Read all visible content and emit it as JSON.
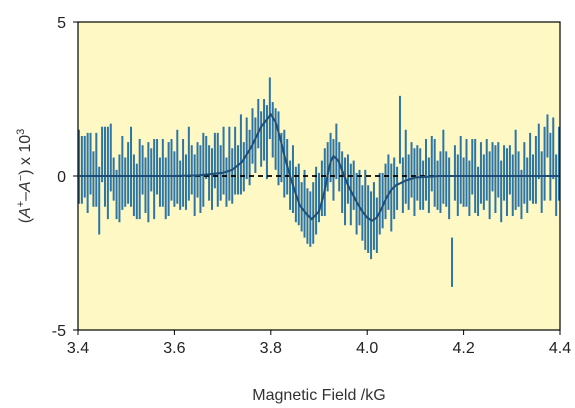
{
  "chart_data": {
    "type": "scatter",
    "title": "",
    "xlabel": "Magnetic Field /kG",
    "ylabel_parts": [
      "(",
      "A",
      "+",
      "–",
      "A",
      "−",
      ") x 10",
      "3"
    ],
    "xlim": [
      3.4,
      4.4
    ],
    "ylim": [
      -5,
      5
    ],
    "x_tick_labels": [
      "3.4",
      "3.6",
      "3.8",
      "4.0",
      "4.2",
      "4.4"
    ],
    "y_tick_labels": [
      "5",
      "0",
      "-5"
    ],
    "background_color": "#fdf8c4",
    "series_color": "#2e75a6",
    "fit_color": "#1f4e79",
    "zero_line_style": "dashed",
    "series": [
      {
        "type": "error_bars",
        "points": [
          {
            "x": 3.402,
            "y": 0.3,
            "err": 1.2
          },
          {
            "x": 3.408,
            "y": 0.2,
            "err": 1.1
          },
          {
            "x": 3.414,
            "y": 0.3,
            "err": 1.0
          },
          {
            "x": 3.42,
            "y": 0.1,
            "err": 1.3
          },
          {
            "x": 3.426,
            "y": 0.4,
            "err": 1.0
          },
          {
            "x": 3.432,
            "y": -0.1,
            "err": 0.9
          },
          {
            "x": 3.438,
            "y": 0.2,
            "err": 1.2
          },
          {
            "x": 3.444,
            "y": -0.8,
            "err": 1.1
          },
          {
            "x": 3.45,
            "y": 0.7,
            "err": 0.9
          },
          {
            "x": 3.456,
            "y": 0.3,
            "err": 1.3
          },
          {
            "x": 3.462,
            "y": 0.1,
            "err": 1.5
          },
          {
            "x": 3.468,
            "y": 0.6,
            "err": 1.1
          },
          {
            "x": 3.474,
            "y": -0.1,
            "err": 0.7
          },
          {
            "x": 3.48,
            "y": -0.6,
            "err": 0.8
          },
          {
            "x": 3.486,
            "y": -0.4,
            "err": 1.1
          },
          {
            "x": 3.492,
            "y": 0.1,
            "err": 1.2
          },
          {
            "x": 3.498,
            "y": -0.2,
            "err": 0.8
          },
          {
            "x": 3.504,
            "y": 0.1,
            "err": 1.0
          },
          {
            "x": 3.51,
            "y": 0.3,
            "err": 1.3
          },
          {
            "x": 3.516,
            "y": -0.3,
            "err": 1.0
          },
          {
            "x": 3.522,
            "y": -0.5,
            "err": 0.9
          },
          {
            "x": 3.528,
            "y": -0.1,
            "err": 1.3
          },
          {
            "x": 3.534,
            "y": 0.2,
            "err": 0.8
          },
          {
            "x": 3.54,
            "y": -0.3,
            "err": 0.9
          },
          {
            "x": 3.546,
            "y": -0.2,
            "err": 1.3
          },
          {
            "x": 3.552,
            "y": 0.2,
            "err": 0.7
          },
          {
            "x": 3.558,
            "y": -0.1,
            "err": 1.3
          },
          {
            "x": 3.564,
            "y": 0.3,
            "err": 0.9
          },
          {
            "x": 3.57,
            "y": -0.2,
            "err": 0.8
          },
          {
            "x": 3.576,
            "y": 0.1,
            "err": 1.1
          },
          {
            "x": 3.582,
            "y": -0.4,
            "err": 1.0
          },
          {
            "x": 3.588,
            "y": -0.1,
            "err": 1.2
          },
          {
            "x": 3.594,
            "y": 0.2,
            "err": 1.0
          },
          {
            "x": 3.6,
            "y": -0.1,
            "err": 0.9
          },
          {
            "x": 3.606,
            "y": 0.3,
            "err": 1.2
          },
          {
            "x": 3.612,
            "y": -0.3,
            "err": 0.8
          },
          {
            "x": 3.618,
            "y": 0.1,
            "err": 1.1
          },
          {
            "x": 3.624,
            "y": -0.2,
            "err": 0.9
          },
          {
            "x": 3.63,
            "y": 0.4,
            "err": 1.2
          },
          {
            "x": 3.636,
            "y": 0.2,
            "err": 0.8
          },
          {
            "x": 3.642,
            "y": -0.3,
            "err": 1.0
          },
          {
            "x": 3.648,
            "y": 0.2,
            "err": 0.9
          },
          {
            "x": 3.654,
            "y": -0.1,
            "err": 1.1
          },
          {
            "x": 3.66,
            "y": 0.2,
            "err": 1.2
          },
          {
            "x": 3.666,
            "y": 0.6,
            "err": 0.7
          },
          {
            "x": 3.672,
            "y": 0.1,
            "err": 0.9
          },
          {
            "x": 3.678,
            "y": -0.1,
            "err": 1.0
          },
          {
            "x": 3.684,
            "y": 0.5,
            "err": 0.9
          },
          {
            "x": 3.69,
            "y": 0.2,
            "err": 1.2
          },
          {
            "x": 3.696,
            "y": 0.1,
            "err": 0.9
          },
          {
            "x": 3.702,
            "y": 0.5,
            "err": 1.1
          },
          {
            "x": 3.708,
            "y": -0.2,
            "err": 0.8
          },
          {
            "x": 3.714,
            "y": 0.4,
            "err": 1.2
          },
          {
            "x": 3.72,
            "y": 0.0,
            "err": 0.9
          },
          {
            "x": 3.726,
            "y": 0.5,
            "err": 1.1
          },
          {
            "x": 3.732,
            "y": 0.2,
            "err": 0.8
          },
          {
            "x": 3.738,
            "y": 0.7,
            "err": 1.3
          },
          {
            "x": 3.744,
            "y": 0.3,
            "err": 0.8
          },
          {
            "x": 3.75,
            "y": 0.9,
            "err": 1.0
          },
          {
            "x": 3.756,
            "y": 0.6,
            "err": 0.9
          },
          {
            "x": 3.762,
            "y": 1.3,
            "err": 0.9
          },
          {
            "x": 3.768,
            "y": 1.0,
            "err": 0.9
          },
          {
            "x": 3.774,
            "y": 1.7,
            "err": 0.8
          },
          {
            "x": 3.78,
            "y": 1.2,
            "err": 0.9
          },
          {
            "x": 3.786,
            "y": 1.5,
            "err": 1.0
          },
          {
            "x": 3.792,
            "y": 1.1,
            "err": 1.2
          },
          {
            "x": 3.798,
            "y": 2.2,
            "err": 1.0
          },
          {
            "x": 3.804,
            "y": 1.5,
            "err": 0.9
          },
          {
            "x": 3.81,
            "y": 1.2,
            "err": 1.0
          },
          {
            "x": 3.816,
            "y": 0.9,
            "err": 1.2
          },
          {
            "x": 3.822,
            "y": 0.6,
            "err": 0.8
          },
          {
            "x": 3.828,
            "y": 0.4,
            "err": 1.1
          },
          {
            "x": 3.834,
            "y": 0.3,
            "err": 0.9
          },
          {
            "x": 3.84,
            "y": -0.3,
            "err": 0.8
          },
          {
            "x": 3.846,
            "y": -0.1,
            "err": 1.1
          },
          {
            "x": 3.852,
            "y": -0.6,
            "err": 0.9
          },
          {
            "x": 3.858,
            "y": -0.6,
            "err": 1.0
          },
          {
            "x": 3.864,
            "y": -1.0,
            "err": 0.8
          },
          {
            "x": 3.87,
            "y": -0.9,
            "err": 1.1
          },
          {
            "x": 3.876,
            "y": -1.3,
            "err": 0.9
          },
          {
            "x": 3.882,
            "y": -1.4,
            "err": 0.9
          },
          {
            "x": 3.888,
            "y": -1.2,
            "err": 1.0
          },
          {
            "x": 3.894,
            "y": -0.8,
            "err": 1.1
          },
          {
            "x": 3.9,
            "y": -0.7,
            "err": 0.8
          },
          {
            "x": 3.906,
            "y": -0.4,
            "err": 0.9
          },
          {
            "x": 3.912,
            "y": -0.2,
            "err": 1.1
          },
          {
            "x": 3.918,
            "y": 0.3,
            "err": 0.8
          },
          {
            "x": 3.924,
            "y": 0.6,
            "err": 0.8
          },
          {
            "x": 3.93,
            "y": 0.2,
            "err": 1.0
          },
          {
            "x": 3.936,
            "y": 0.8,
            "err": 0.9
          },
          {
            "x": 3.942,
            "y": 0.3,
            "err": 0.8
          },
          {
            "x": 3.948,
            "y": -0.2,
            "err": 1.0
          },
          {
            "x": 3.954,
            "y": -0.5,
            "err": 1.1
          },
          {
            "x": 3.96,
            "y": -0.1,
            "err": 0.8
          },
          {
            "x": 3.966,
            "y": -0.6,
            "err": 1.0
          },
          {
            "x": 3.972,
            "y": -0.3,
            "err": 0.8
          },
          {
            "x": 3.978,
            "y": -0.9,
            "err": 1.0
          },
          {
            "x": 3.984,
            "y": -0.7,
            "err": 0.9
          },
          {
            "x": 3.99,
            "y": -1.2,
            "err": 0.9
          },
          {
            "x": 3.996,
            "y": -1.1,
            "err": 1.3
          },
          {
            "x": 4.002,
            "y": -1.4,
            "err": 1.1
          },
          {
            "x": 4.008,
            "y": -1.6,
            "err": 1.1
          },
          {
            "x": 4.014,
            "y": -1.3,
            "err": 1.1
          },
          {
            "x": 4.02,
            "y": -1.6,
            "err": 0.9
          },
          {
            "x": 4.026,
            "y": -0.9,
            "err": 1.0
          },
          {
            "x": 4.032,
            "y": -0.8,
            "err": 0.9
          },
          {
            "x": 4.038,
            "y": -0.5,
            "err": 0.9
          },
          {
            "x": 4.044,
            "y": -0.2,
            "err": 0.9
          },
          {
            "x": 4.05,
            "y": -0.7,
            "err": 1.1
          },
          {
            "x": 4.056,
            "y": -0.4,
            "err": 1.0
          },
          {
            "x": 4.062,
            "y": -0.4,
            "err": 0.7
          },
          {
            "x": 4.068,
            "y": 1.5,
            "err": 1.1
          },
          {
            "x": 4.074,
            "y": -0.3,
            "err": 0.9
          },
          {
            "x": 4.08,
            "y": 0.3,
            "err": 1.2
          },
          {
            "x": 4.086,
            "y": -0.2,
            "err": 0.9
          },
          {
            "x": 4.092,
            "y": 0.2,
            "err": 0.9
          },
          {
            "x": 4.098,
            "y": -0.2,
            "err": 1.1
          },
          {
            "x": 4.104,
            "y": 0.1,
            "err": 0.9
          },
          {
            "x": 4.11,
            "y": -0.1,
            "err": 1.0
          },
          {
            "x": 4.116,
            "y": -0.3,
            "err": 0.8
          },
          {
            "x": 4.122,
            "y": 0.2,
            "err": 1.0
          },
          {
            "x": 4.128,
            "y": -0.3,
            "err": 0.9
          },
          {
            "x": 4.134,
            "y": 0.4,
            "err": 0.9
          },
          {
            "x": 4.14,
            "y": 0.1,
            "err": 1.1
          },
          {
            "x": 4.146,
            "y": -0.3,
            "err": 0.8
          },
          {
            "x": 4.152,
            "y": -0.2,
            "err": 1.0
          },
          {
            "x": 4.158,
            "y": 0.3,
            "err": 1.2
          },
          {
            "x": 4.164,
            "y": -0.1,
            "err": 0.9
          },
          {
            "x": 4.17,
            "y": -0.4,
            "err": 1.0
          },
          {
            "x": 4.176,
            "y": -2.8,
            "err": 0.8
          },
          {
            "x": 4.182,
            "y": 0.1,
            "err": 0.9
          },
          {
            "x": 4.188,
            "y": -0.3,
            "err": 1.0
          },
          {
            "x": 4.194,
            "y": 0.2,
            "err": 1.1
          },
          {
            "x": 4.2,
            "y": -0.2,
            "err": 0.8
          },
          {
            "x": 4.206,
            "y": 0.1,
            "err": 1.1
          },
          {
            "x": 4.212,
            "y": -0.4,
            "err": 0.9
          },
          {
            "x": 4.218,
            "y": 0.3,
            "err": 0.9
          },
          {
            "x": 4.224,
            "y": 0.0,
            "err": 1.2
          },
          {
            "x": 4.23,
            "y": -0.5,
            "err": 0.8
          },
          {
            "x": 4.236,
            "y": 0.1,
            "err": 1.0
          },
          {
            "x": 4.242,
            "y": -0.2,
            "err": 0.9
          },
          {
            "x": 4.248,
            "y": 0.2,
            "err": 1.0
          },
          {
            "x": 4.254,
            "y": -0.3,
            "err": 1.1
          },
          {
            "x": 4.26,
            "y": 0.3,
            "err": 0.8
          },
          {
            "x": 4.266,
            "y": -0.1,
            "err": 1.1
          },
          {
            "x": 4.272,
            "y": 0.2,
            "err": 0.9
          },
          {
            "x": 4.278,
            "y": -0.5,
            "err": 1.0
          },
          {
            "x": 4.284,
            "y": 0.1,
            "err": 0.9
          },
          {
            "x": 4.29,
            "y": -0.2,
            "err": 1.1
          },
          {
            "x": 4.296,
            "y": 0.2,
            "err": 0.8
          },
          {
            "x": 4.302,
            "y": -0.3,
            "err": 1.0
          },
          {
            "x": 4.308,
            "y": 0.2,
            "err": 1.3
          },
          {
            "x": 4.314,
            "y": -0.1,
            "err": 0.9
          },
          {
            "x": 4.32,
            "y": -0.6,
            "err": 0.8
          },
          {
            "x": 4.326,
            "y": 0.1,
            "err": 1.0
          },
          {
            "x": 4.332,
            "y": -0.3,
            "err": 0.9
          },
          {
            "x": 4.338,
            "y": 0.3,
            "err": 1.1
          },
          {
            "x": 4.344,
            "y": -0.1,
            "err": 0.8
          },
          {
            "x": 4.35,
            "y": 0.2,
            "err": 1.1
          },
          {
            "x": 4.356,
            "y": 0.8,
            "err": 0.9
          },
          {
            "x": 4.362,
            "y": -0.2,
            "err": 1.0
          },
          {
            "x": 4.368,
            "y": 0.4,
            "err": 1.2
          },
          {
            "x": 4.374,
            "y": 1.3,
            "err": 0.7
          },
          {
            "x": 4.38,
            "y": 0.3,
            "err": 1.1
          },
          {
            "x": 4.386,
            "y": 0.9,
            "err": 1.0
          },
          {
            "x": 4.392,
            "y": -0.3,
            "err": 1.0
          },
          {
            "x": 4.398,
            "y": 0.4,
            "err": 1.2
          }
        ]
      },
      {
        "type": "line",
        "points": [
          [
            3.4,
            0.0
          ],
          [
            3.5,
            0.0
          ],
          [
            3.6,
            0.0
          ],
          [
            3.65,
            0.02
          ],
          [
            3.7,
            0.1
          ],
          [
            3.72,
            0.2
          ],
          [
            3.74,
            0.45
          ],
          [
            3.76,
            0.95
          ],
          [
            3.78,
            1.6
          ],
          [
            3.8,
            2.0
          ],
          [
            3.81,
            1.75
          ],
          [
            3.82,
            1.2
          ],
          [
            3.83,
            0.55
          ],
          [
            3.84,
            0.0
          ],
          [
            3.85,
            -0.5
          ],
          [
            3.86,
            -0.95
          ],
          [
            3.875,
            -1.25
          ],
          [
            3.885,
            -1.4
          ],
          [
            3.9,
            -1.15
          ],
          [
            3.91,
            -0.6
          ],
          [
            3.92,
            0.2
          ],
          [
            3.925,
            0.5
          ],
          [
            3.93,
            0.65
          ],
          [
            3.94,
            0.5
          ],
          [
            3.95,
            0.1
          ],
          [
            3.96,
            -0.3
          ],
          [
            3.97,
            -0.6
          ],
          [
            3.98,
            -0.9
          ],
          [
            3.99,
            -1.15
          ],
          [
            4.0,
            -1.35
          ],
          [
            4.01,
            -1.45
          ],
          [
            4.02,
            -1.35
          ],
          [
            4.03,
            -1.05
          ],
          [
            4.04,
            -0.7
          ],
          [
            4.05,
            -0.45
          ],
          [
            4.06,
            -0.3
          ],
          [
            4.08,
            -0.15
          ],
          [
            4.1,
            -0.05
          ],
          [
            4.15,
            0.0
          ],
          [
            4.4,
            0.0
          ]
        ]
      }
    ]
  }
}
